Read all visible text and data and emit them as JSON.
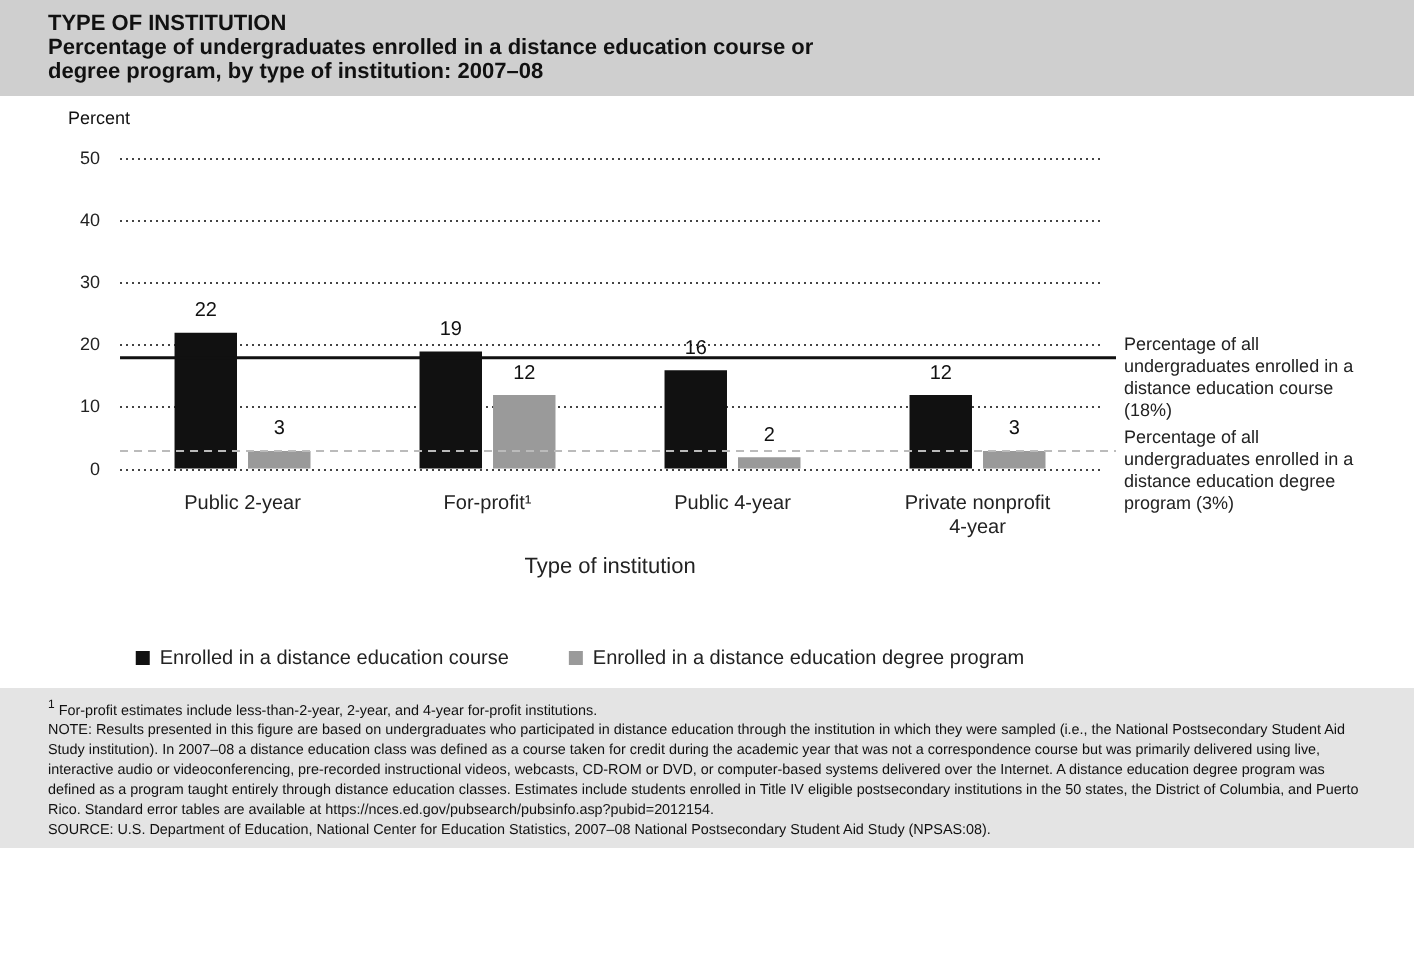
{
  "chart_data": {
    "type": "bar",
    "title": "TYPE OF INSTITUTION",
    "subtitle": "Percentage of undergraduates enrolled in a distance education course or degree program, by type of institution: 2007–08",
    "ylabel": "Percent",
    "xlabel": "Type of institution",
    "categories": [
      "Public 2-year",
      "For-profit¹",
      "Public 4-year",
      "Private nonprofit 4-year"
    ],
    "series": [
      {
        "name": "Enrolled in a distance education course",
        "color": "#111111",
        "values": [
          22,
          19,
          16,
          12
        ]
      },
      {
        "name": "Enrolled in a distance education degree program",
        "color": "#9a9a9a",
        "values": [
          3,
          12,
          2,
          3
        ]
      }
    ],
    "ylim": [
      0,
      50
    ],
    "yticks": [
      0,
      10,
      20,
      30,
      40,
      50
    ],
    "grid": "y",
    "legend": "bottom",
    "data_labels": true,
    "ref_lines": [
      {
        "axis": "y",
        "value": 18,
        "label": "Percentage of all undergraduates enrolled in a distance education course (18%)",
        "color": "#111111",
        "line_style": "solid"
      },
      {
        "axis": "y",
        "value": 3,
        "label": "Percentage of all undergraduates enrolled in a distance education degree program (3%)",
        "color": "#bbbbbb",
        "line_style": "dashed"
      }
    ],
    "annotations": [
      "$^{1}$ For-profit estimates include less-than-2-year, 2-year, and 4-year for-profit institutions.",
      "NOTE: Results presented in this figure are based on undergraduates who participated in distance education through the institution in which they were sampled (i.e., the National Postsecondary Student Aid Study institution). In 2007–08 a distance education class was defined as a course taken for credit during the academic year that was not a correspondence course but was primarily delivered using live, interactive audio or videoconferencing, pre-recorded instructional videos, webcasts, CD-ROM or DVD, or computer-based systems delivered over the Internet. A distance education degree program was defined as a program taught entirely through distance education classes. Estimates include students enrolled in Title IV eligible postsecondary institutions in the 50 states, the District of Columbia, and Puerto Rico. Standard error tables are available at https://nces.ed.gov/pubsearch/pubsinfo.asp?pubid=2012154.",
      "SOURCE: U.S. Department of Education, National Center for Education Statistics, 2007–08 National Postsecondary Student Aid Study (NPSAS:08)."
    ]
  }
}
